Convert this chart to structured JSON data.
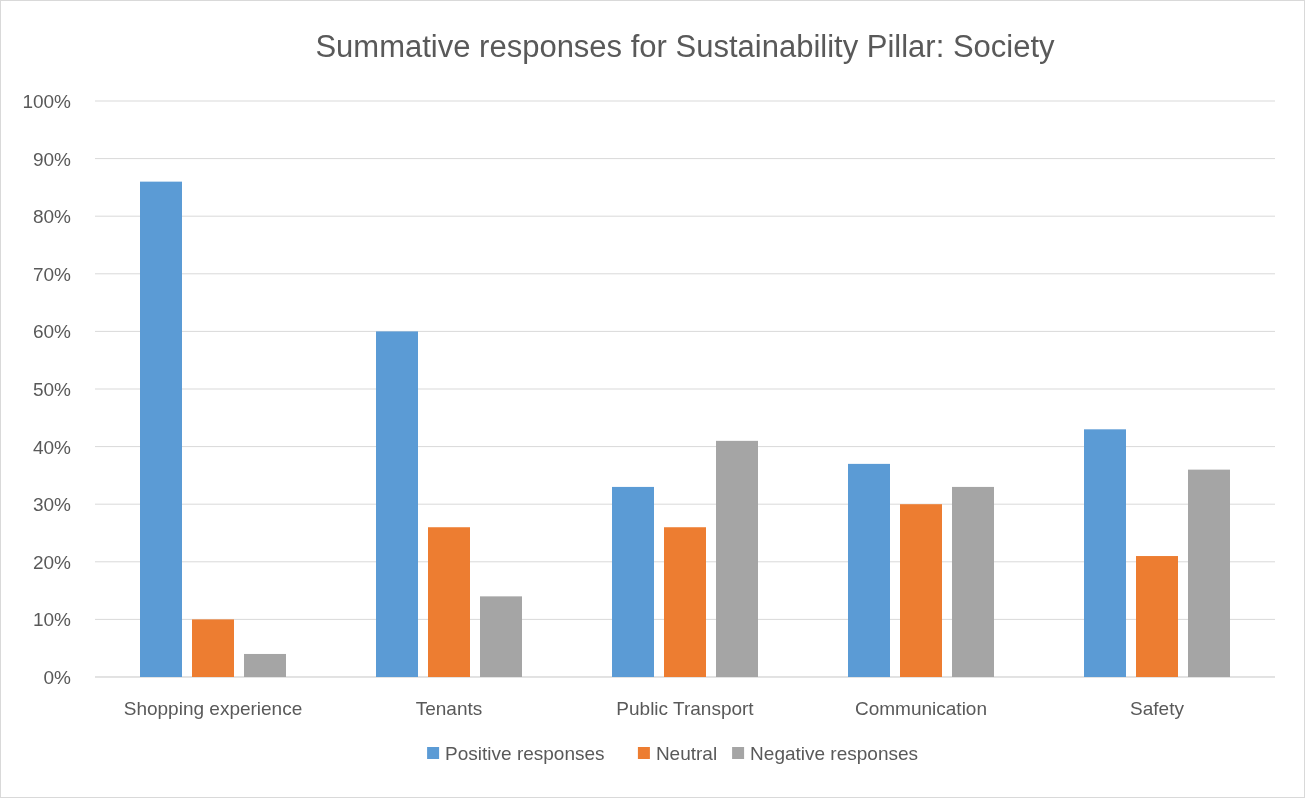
{
  "chart_data": {
    "type": "bar",
    "title": "Summative responses for Sustainability Pillar: Society",
    "categories": [
      "Shopping experience",
      "Tenants",
      "Public Transport",
      "Communication",
      "Safety"
    ],
    "series": [
      {
        "name": "Positive responses",
        "color": "#5b9bd5",
        "values": [
          86,
          60,
          33,
          37,
          43
        ]
      },
      {
        "name": "Neutral",
        "color": "#ed7d31",
        "values": [
          10,
          26,
          26,
          30,
          21
        ]
      },
      {
        "name": "Negative responses",
        "color": "#a5a5a5",
        "values": [
          4,
          14,
          41,
          33,
          36
        ]
      }
    ],
    "ylim": [
      0,
      100
    ],
    "yticks": [
      {
        "value": 0,
        "label": "0%"
      },
      {
        "value": 10,
        "label": "10%"
      },
      {
        "value": 20,
        "label": "20%"
      },
      {
        "value": 30,
        "label": "30%"
      },
      {
        "value": 40,
        "label": "40%"
      },
      {
        "value": 50,
        "label": "50%"
      },
      {
        "value": 60,
        "label": "60%"
      },
      {
        "value": 70,
        "label": "70%"
      },
      {
        "value": 80,
        "label": "80%"
      },
      {
        "value": 90,
        "label": "90%"
      },
      {
        "value": 100,
        "label": "100%"
      }
    ],
    "grid": "y",
    "legend": "bottom"
  }
}
